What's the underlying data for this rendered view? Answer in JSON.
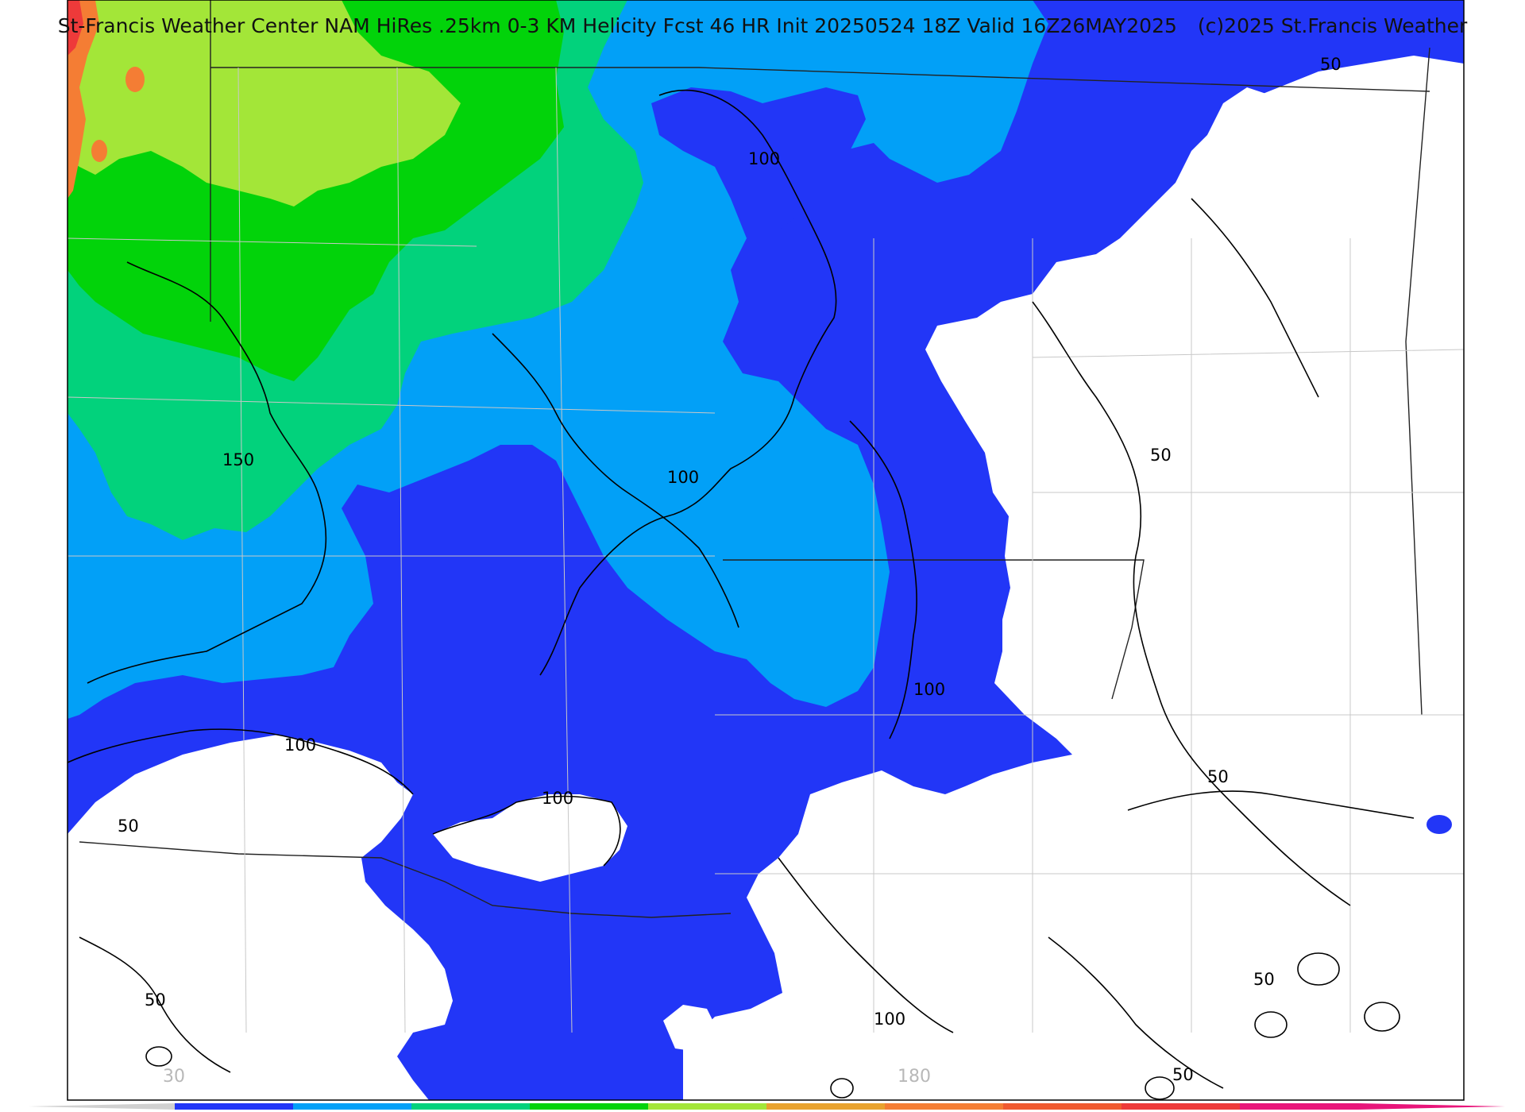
{
  "title": {
    "left": "St-Francis Weather Center NAM HiRes .25km 0-3 KM Helicity Fcst 46 HR Init 20250524 18Z  Valid 16Z26MAY2025",
    "right": "(c)2025 St.Francis Weather"
  },
  "map": {
    "variable": "0-3 KM Helicity",
    "contour_labels": [
      "50",
      "50",
      "50",
      "50",
      "50",
      "50",
      "50",
      "100",
      "100",
      "100",
      "100",
      "100",
      "100",
      "150"
    ],
    "fill_colors": {
      "dark_blue": "#2236f7",
      "light_blue": "#02a0f7",
      "sea_green": "#02d27c",
      "green": "#02d30a",
      "lime": "#a3e638",
      "orange": "#f47d34",
      "red": "#ee3a3a"
    }
  },
  "colorbar": {
    "tick_labels": [
      "30",
      "180"
    ],
    "colors": [
      "#2236f7",
      "#02a0f7",
      "#02d27c",
      "#02d30a",
      "#a3e638",
      "#e8a22e",
      "#f47d34",
      "#f05a30",
      "#ee3a3a",
      "#e8157a"
    ]
  }
}
